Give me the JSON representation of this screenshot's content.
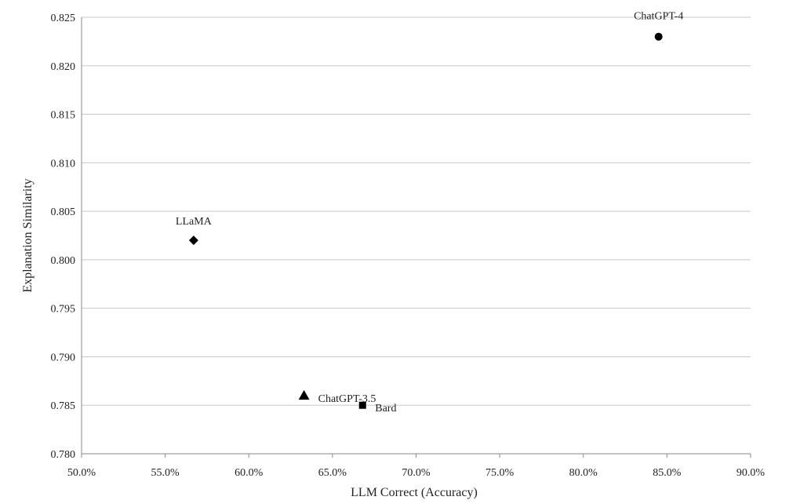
{
  "chart_data": {
    "type": "scatter",
    "xlabel": "LLM Correct (Accuracy)",
    "ylabel": "Explanation Similarity",
    "xlim": [
      50,
      90
    ],
    "ylim": [
      0.78,
      0.825
    ],
    "x_ticks": [
      "50.0%",
      "55.0%",
      "60.0%",
      "65.0%",
      "70.0%",
      "75.0%",
      "80.0%",
      "85.0%",
      "90.0%"
    ],
    "y_ticks": [
      "0.780",
      "0.785",
      "0.790",
      "0.795",
      "0.800",
      "0.805",
      "0.810",
      "0.815",
      "0.820",
      "0.825"
    ],
    "grid": true,
    "points": [
      {
        "label": "ChatGPT-4",
        "x": 84.5,
        "y": 0.823,
        "marker": "circle"
      },
      {
        "label": "LLaMA",
        "x": 56.7,
        "y": 0.802,
        "marker": "diamond"
      },
      {
        "label": "ChatGPT-3.5",
        "x": 63.3,
        "y": 0.786,
        "marker": "triangle"
      },
      {
        "label": "Bard",
        "x": 66.8,
        "y": 0.785,
        "marker": "square"
      }
    ],
    "marker_color": "#000000"
  }
}
